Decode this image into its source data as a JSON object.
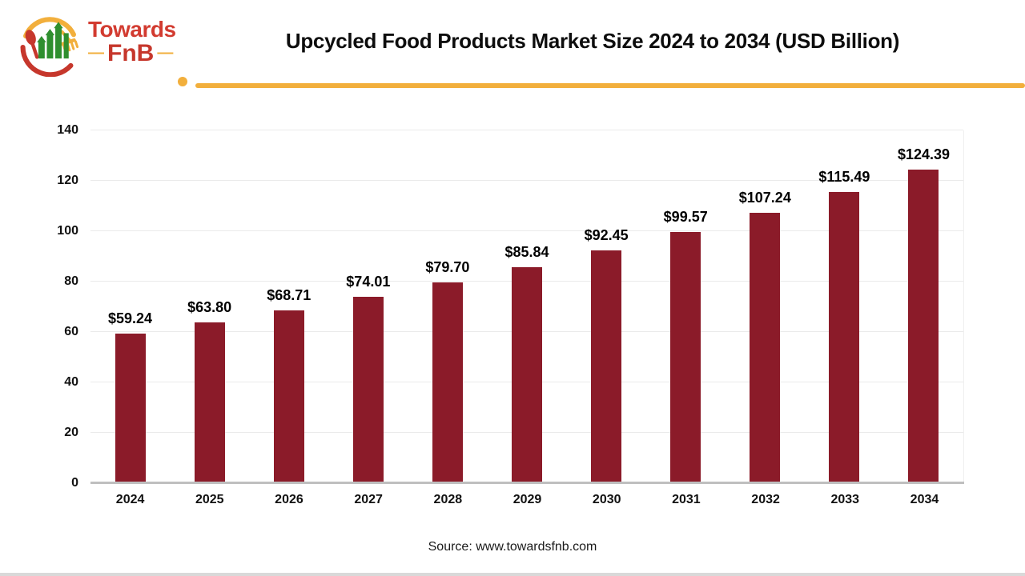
{
  "header": {
    "logo": {
      "word1": "Towards",
      "word2": "FnB",
      "dash": "—"
    },
    "title": "Upcycled Food Products Market Size 2024 to 2034 (USD Billion)"
  },
  "chart_data": {
    "type": "bar",
    "title": "Upcycled Food Products Market Size 2024 to 2034 (USD Billion)",
    "categories": [
      "2024",
      "2025",
      "2026",
      "2027",
      "2028",
      "2029",
      "2030",
      "2031",
      "2032",
      "2033",
      "2034"
    ],
    "values": [
      59.24,
      63.8,
      68.71,
      74.01,
      79.7,
      85.84,
      92.45,
      99.57,
      107.24,
      115.49,
      124.39
    ],
    "value_labels": [
      "$59.24",
      "$63.80",
      "$68.71",
      "$74.01",
      "$79.70",
      "$85.84",
      "$92.45",
      "$99.57",
      "$107.24",
      "$115.49",
      "$124.39"
    ],
    "xlabel": "",
    "ylabel": "",
    "ylim": [
      0,
      140
    ],
    "yticks": [
      0,
      20,
      40,
      60,
      80,
      100,
      120,
      140
    ],
    "grid": true,
    "legend": "none",
    "bar_color": "#8B1B29"
  },
  "footer": {
    "source": "Source: www.towardsfnb.com"
  },
  "colors": {
    "accent_yellow": "#F2AF3C",
    "logo_red": "#D23B30",
    "logo_green": "#2F8F2F",
    "bar_maroon": "#8B1B29",
    "axis_line": "#BFBFBF",
    "gridline": "#EAEAEA"
  }
}
